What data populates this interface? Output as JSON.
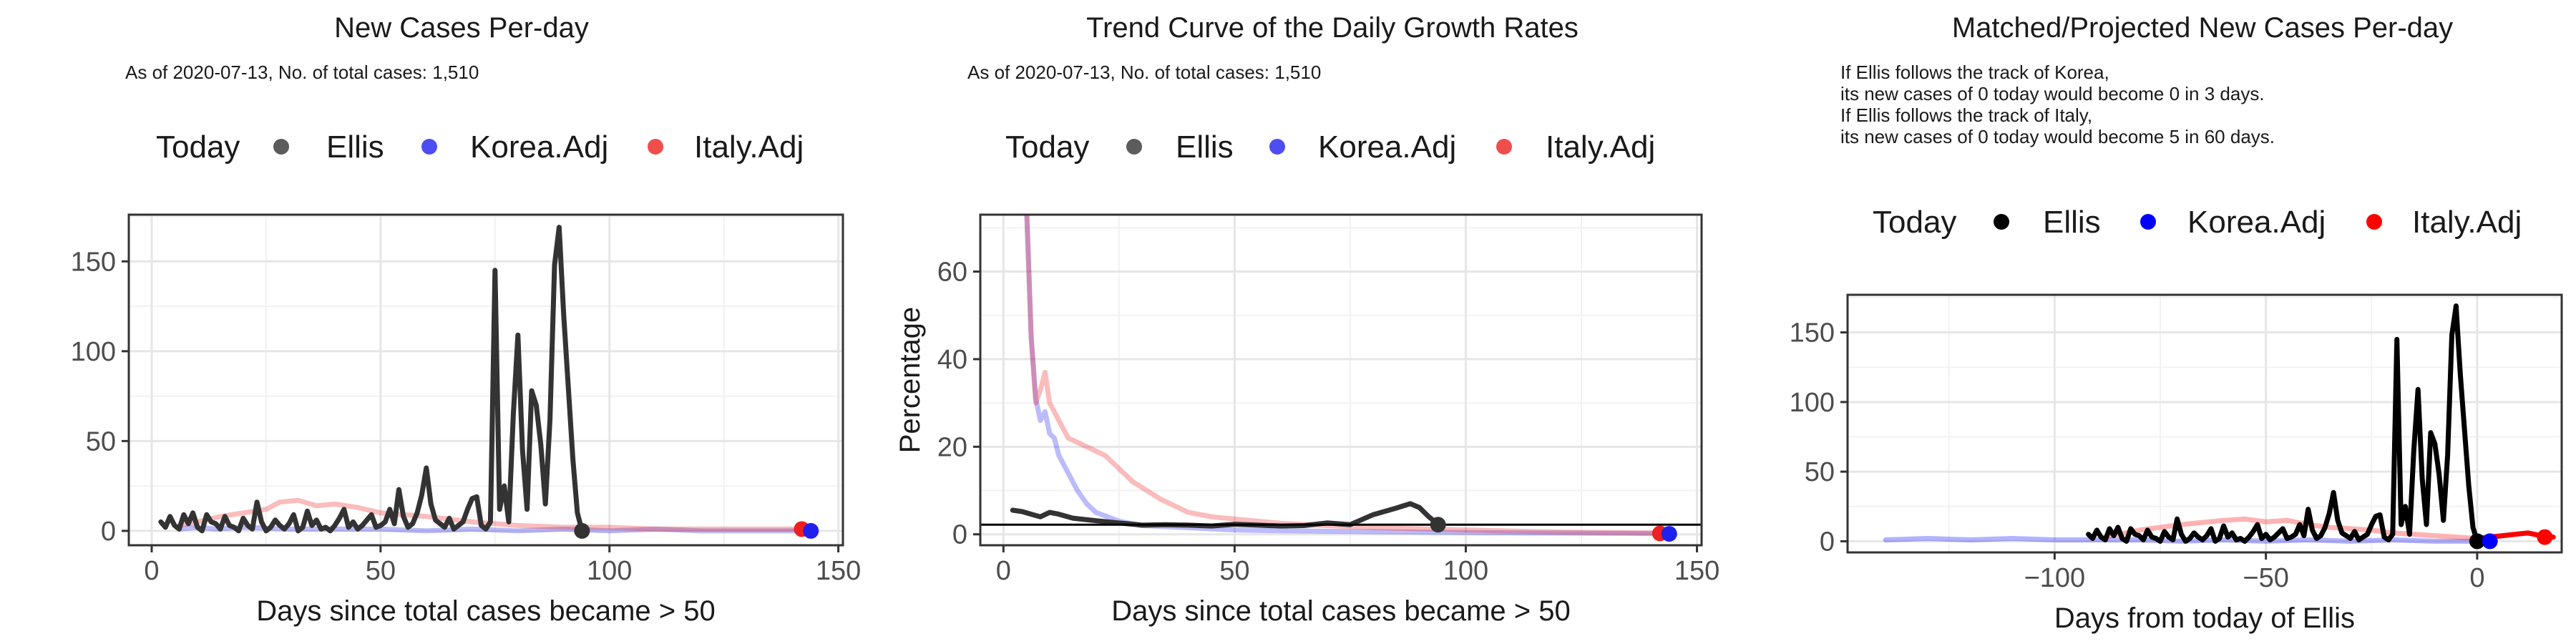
{
  "chart_data": [
    {
      "type": "line",
      "title": "New Cases Per-day",
      "subtitle_lines": [
        "As of 2020-07-13, No. of total cases: 1,510"
      ],
      "legend": {
        "title": "Today",
        "entries": [
          "Ellis",
          "Korea.Adj",
          "Italy.Adj"
        ]
      },
      "colors": {
        "Ellis": "#333333",
        "Korea.Adj": "#2020ee",
        "Italy.Adj": "#ee2020"
      },
      "xlabel": "Days since total cases became > 50",
      "ylabel": "",
      "x_ticks": [
        0,
        50,
        100,
        150
      ],
      "y_ticks": [
        0,
        50,
        100,
        150
      ],
      "xlim": [
        -5,
        151
      ],
      "ylim": [
        -8,
        176
      ],
      "grid": true,
      "series": [
        {
          "name": "Ellis",
          "x": [
            2,
            3,
            4,
            5,
            6,
            7,
            8,
            9,
            10,
            11,
            12,
            13,
            14,
            15,
            16,
            17,
            18,
            19,
            20,
            21,
            22,
            23,
            24,
            25,
            26,
            27,
            28,
            29,
            30,
            31,
            32,
            33,
            34,
            35,
            36,
            37,
            38,
            39,
            40,
            41,
            42,
            43,
            44,
            45,
            46,
            47,
            48,
            49,
            50,
            51,
            52,
            53,
            54,
            55,
            56,
            57,
            58,
            59,
            60,
            61,
            62,
            63,
            64,
            65,
            66,
            67,
            68,
            69,
            70,
            71,
            72,
            73,
            74,
            75,
            76,
            77,
            78,
            79,
            80,
            81,
            82,
            83,
            84,
            85,
            86,
            87,
            88,
            89,
            90,
            91,
            92,
            93,
            94
          ],
          "y": [
            5,
            2,
            8,
            3,
            1,
            9,
            4,
            10,
            2,
            0,
            9,
            5,
            4,
            1,
            8,
            3,
            2,
            0,
            7,
            3,
            1,
            16,
            5,
            0,
            2,
            6,
            3,
            1,
            4,
            9,
            0,
            2,
            11,
            3,
            6,
            1,
            2,
            0,
            3,
            7,
            12,
            2,
            5,
            1,
            3,
            6,
            9,
            2,
            3,
            5,
            12,
            4,
            23,
            8,
            2,
            4,
            10,
            20,
            35,
            15,
            6,
            4,
            2,
            7,
            1,
            3,
            5,
            12,
            18,
            19,
            3,
            1,
            5,
            145,
            12,
            25,
            5,
            65,
            109,
            45,
            12,
            78,
            70,
            48,
            15,
            62,
            148,
            169,
            120,
            80,
            40,
            10,
            0
          ]
        },
        {
          "name": "Korea.Adj",
          "x": [
            6,
            10,
            14,
            20,
            30,
            40,
            50,
            60,
            70,
            80,
            90,
            100,
            110,
            120,
            130,
            144
          ],
          "y": [
            1,
            2,
            1,
            2,
            1,
            1,
            1,
            0,
            1,
            0,
            1,
            0,
            1,
            0,
            0,
            0
          ]
        },
        {
          "name": "Italy.Adj",
          "x": [
            6,
            10,
            15,
            20,
            25,
            28,
            32,
            36,
            40,
            45,
            50,
            55,
            60,
            70,
            80,
            90,
            100,
            110,
            120,
            130,
            142
          ],
          "y": [
            3,
            5,
            8,
            10,
            12,
            16,
            17,
            14,
            15,
            13,
            10,
            9,
            8,
            5,
            3,
            2,
            2,
            1,
            1,
            1,
            1
          ]
        }
      ],
      "today_points": [
        {
          "name": "Ellis",
          "x": 94,
          "y": 0
        },
        {
          "name": "Italy.Adj",
          "x": 142,
          "y": 1
        },
        {
          "name": "Korea.Adj",
          "x": 144,
          "y": 0
        }
      ]
    },
    {
      "type": "line",
      "title": "Trend Curve of the Daily Growth Rates",
      "subtitle_lines": [
        "As of 2020-07-13, No. of total cases: 1,510"
      ],
      "legend": {
        "title": "Today",
        "entries": [
          "Ellis",
          "Korea.Adj",
          "Italy.Adj"
        ]
      },
      "colors": {
        "Ellis": "#333333",
        "Korea.Adj": "#2020ee",
        "Italy.Adj": "#ee2020"
      },
      "xlabel": "Days since total cases became > 50",
      "ylabel": "Percentage",
      "x_ticks": [
        0,
        50,
        100,
        150
      ],
      "y_ticks": [
        0,
        20,
        40,
        60
      ],
      "xlim": [
        -5,
        151
      ],
      "ylim": [
        -2.5,
        73
      ],
      "grid": true,
      "reference_line_y": 2.2,
      "series": [
        {
          "name": "Ellis",
          "x": [
            2,
            4,
            6,
            8,
            10,
            12,
            15,
            20,
            25,
            30,
            35,
            40,
            45,
            50,
            55,
            60,
            65,
            70,
            75,
            80,
            85,
            88,
            90,
            92,
            94
          ],
          "y": [
            5.5,
            5.2,
            4.6,
            4.0,
            5.0,
            4.6,
            3.7,
            3.1,
            2.6,
            2.1,
            2.2,
            2.1,
            1.9,
            2.3,
            2.1,
            1.9,
            2.0,
            2.6,
            2.2,
            4.5,
            6.0,
            7.0,
            6.1,
            4.0,
            2.3
          ]
        },
        {
          "name": "Korea.Adj",
          "x": [
            5,
            6,
            7,
            8,
            9,
            10,
            11,
            12,
            14,
            16,
            18,
            20,
            25,
            30,
            40,
            50,
            60,
            80,
            100,
            120,
            144
          ],
          "y": [
            75,
            45,
            31,
            26,
            28,
            23,
            22,
            18,
            14,
            10,
            7,
            5,
            3,
            2,
            1.5,
            1,
            0.8,
            0.6,
            0.4,
            0.3,
            0.2
          ]
        },
        {
          "name": "Italy.Adj",
          "x": [
            5,
            6,
            7,
            8,
            9,
            10,
            11,
            12,
            13,
            14,
            16,
            18,
            20,
            22,
            25,
            28,
            31,
            34,
            37,
            40,
            45,
            50,
            55,
            60,
            70,
            80,
            100,
            120,
            142
          ],
          "y": [
            75,
            45,
            30,
            33,
            37,
            30,
            28,
            26,
            24,
            22,
            21,
            20,
            19,
            18,
            15,
            12,
            10,
            8,
            6.5,
            5,
            4,
            3.5,
            3,
            2.5,
            2,
            1.5,
            1,
            0.5,
            0.3
          ]
        }
      ],
      "today_points": [
        {
          "name": "Ellis",
          "x": 94,
          "y": 2.2
        },
        {
          "name": "Italy.Adj",
          "x": 142,
          "y": 0.2
        },
        {
          "name": "Korea.Adj",
          "x": 144,
          "y": 0.1
        }
      ]
    },
    {
      "type": "line",
      "title": "Matched/Projected New Cases Per-day",
      "subtitle_lines": [
        "If Ellis follows the track of Korea,",
        "its new cases of 0 today would become 0 in 3 days.",
        "If Ellis follows the track of Italy,",
        "its new cases of 0 today would become 5 in 60 days."
      ],
      "legend": {
        "title": "Today",
        "entries": [
          "Ellis",
          "Korea.Adj",
          "Italy.Adj"
        ]
      },
      "colors": {
        "Ellis": "#000000",
        "Korea.Adj": "#0000ff",
        "Italy.Adj": "#ff0000"
      },
      "xlabel": "Days from today of Ellis",
      "ylabel": "",
      "x_ticks": [
        -100,
        -50,
        0
      ],
      "y_ticks": [
        0,
        50,
        100,
        150
      ],
      "xlim": [
        -149,
        20
      ],
      "ylim": [
        -8,
        177
      ],
      "grid": true,
      "series": [
        {
          "name": "Ellis",
          "x": [
            -92,
            -91,
            -90,
            -89,
            -88,
            -87,
            -86,
            -85,
            -84,
            -83,
            -82,
            -81,
            -80,
            -79,
            -78,
            -77,
            -76,
            -75,
            -74,
            -73,
            -72,
            -71,
            -70,
            -69,
            -68,
            -67,
            -66,
            -65,
            -64,
            -63,
            -62,
            -61,
            -60,
            -59,
            -58,
            -57,
            -56,
            -55,
            -54,
            -53,
            -52,
            -51,
            -50,
            -49,
            -48,
            -47,
            -46,
            -45,
            -44,
            -43,
            -42,
            -41,
            -40,
            -39,
            -38,
            -37,
            -36,
            -35,
            -34,
            -33,
            -32,
            -31,
            -30,
            -29,
            -28,
            -27,
            -26,
            -25,
            -24,
            -23,
            -22,
            -21,
            -20,
            -19,
            -18,
            -17,
            -16,
            -15,
            -14,
            -13,
            -12,
            -11,
            -10,
            -9,
            -8,
            -7,
            -6,
            -5,
            -4,
            -3,
            -2,
            -1,
            0
          ],
          "y": [
            5,
            2,
            8,
            3,
            1,
            9,
            4,
            10,
            2,
            0,
            9,
            5,
            4,
            1,
            8,
            3,
            2,
            0,
            7,
            3,
            1,
            16,
            5,
            0,
            2,
            6,
            3,
            1,
            4,
            9,
            0,
            2,
            11,
            3,
            6,
            1,
            2,
            0,
            3,
            7,
            12,
            2,
            5,
            1,
            3,
            6,
            9,
            2,
            3,
            5,
            12,
            4,
            23,
            8,
            2,
            4,
            10,
            20,
            35,
            15,
            6,
            4,
            2,
            7,
            1,
            3,
            5,
            12,
            18,
            19,
            3,
            1,
            5,
            145,
            12,
            25,
            5,
            65,
            109,
            45,
            12,
            78,
            70,
            48,
            15,
            62,
            148,
            169,
            120,
            80,
            40,
            10,
            0
          ]
        },
        {
          "name": "Korea.Adj",
          "x": [
            -140,
            -130,
            -120,
            -110,
            -100,
            -90,
            -80,
            -70,
            -60,
            -50,
            -40,
            -30,
            -20,
            -10,
            0,
            3
          ],
          "y": [
            1,
            2,
            1,
            2,
            1,
            1,
            1,
            0,
            1,
            0,
            1,
            0,
            1,
            0,
            0,
            0
          ]
        },
        {
          "name": "Italy.Adj",
          "x": [
            -88,
            -80,
            -70,
            -60,
            -55,
            -50,
            -45,
            -40,
            -35,
            -30,
            -25,
            -20,
            -10,
            0,
            3,
            6,
            9,
            12,
            15,
            18
          ],
          "y": [
            3,
            8,
            12,
            15,
            16,
            14,
            15,
            12,
            10,
            9,
            8,
            6,
            4,
            2,
            3,
            4,
            5,
            6,
            4,
            3
          ]
        }
      ],
      "today_points": [
        {
          "name": "Ellis",
          "x": 0,
          "y": 0
        },
        {
          "name": "Korea.Adj",
          "x": 3,
          "y": 0
        },
        {
          "name": "Italy.Adj",
          "x": 16,
          "y": 3
        }
      ]
    }
  ]
}
